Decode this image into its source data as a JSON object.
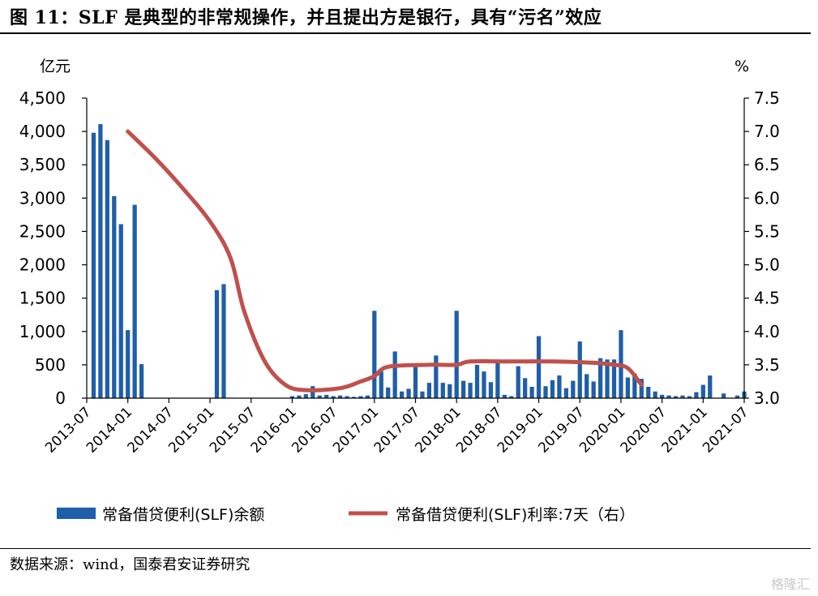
{
  "page": {
    "title": "图 11：SLF 是典型的非常规操作，并且提出方是银行，具有“污名”效应",
    "source": "数据来源：wind，国泰君安证券研究",
    "watermark": "格隆汇"
  },
  "colors": {
    "bar": "#1f5ea8",
    "line": "#c0504d",
    "axis": "#000000"
  },
  "chart_data": {
    "type": "bar+line",
    "left_unit": "亿元",
    "right_unit": "%",
    "ylim_left": [
      0,
      4500
    ],
    "ylim_right": [
      3.0,
      7.5
    ],
    "left_ticks": [
      0,
      500,
      1000,
      1500,
      2000,
      2500,
      3000,
      3500,
      4000,
      4500
    ],
    "left_tick_labels": [
      "0",
      "500",
      "1,000",
      "1,500",
      "2,000",
      "2,500",
      "3,000",
      "3,500",
      "4,000",
      "4,500"
    ],
    "right_ticks": [
      3.0,
      3.5,
      4.0,
      4.5,
      5.0,
      5.5,
      6.0,
      6.5,
      7.0,
      7.5
    ],
    "right_tick_labels": [
      "3.0",
      "3.5",
      "4.0",
      "4.5",
      "5.0",
      "5.5",
      "6.0",
      "6.5",
      "7.0",
      "7.5"
    ],
    "x_start": "2013-07",
    "x_end": "2021-07",
    "x_tick_labels": [
      "2013-07",
      "2014-01",
      "2014-07",
      "2015-01",
      "2015-07",
      "2016-01",
      "2016-07",
      "2017-01",
      "2017-07",
      "2018-01",
      "2018-07",
      "2019-01",
      "2019-07",
      "2020-01",
      "2020-07",
      "2021-01",
      "2021-07"
    ],
    "grid": false,
    "legend_position": "bottom",
    "series": [
      {
        "name": "常备借贷便利(SLF)余额",
        "type": "bar",
        "axis": "left",
        "points": [
          [
            "2013-08",
            3980
          ],
          [
            "2013-09",
            4110
          ],
          [
            "2013-10",
            3870
          ],
          [
            "2013-11",
            3030
          ],
          [
            "2013-12",
            2610
          ],
          [
            "2014-01",
            1020
          ],
          [
            "2014-02",
            2900
          ],
          [
            "2014-03",
            510
          ],
          [
            "2015-02",
            1620
          ],
          [
            "2015-03",
            1710
          ],
          [
            "2016-01",
            30
          ],
          [
            "2016-02",
            40
          ],
          [
            "2016-03",
            60
          ],
          [
            "2016-04",
            180
          ],
          [
            "2016-05",
            40
          ],
          [
            "2016-06",
            50
          ],
          [
            "2016-07",
            30
          ],
          [
            "2016-08",
            40
          ],
          [
            "2016-09",
            30
          ],
          [
            "2016-10",
            20
          ],
          [
            "2016-11",
            30
          ],
          [
            "2016-12",
            40
          ],
          [
            "2017-01",
            1310
          ],
          [
            "2017-02",
            400
          ],
          [
            "2017-03",
            160
          ],
          [
            "2017-04",
            700
          ],
          [
            "2017-05",
            100
          ],
          [
            "2017-06",
            140
          ],
          [
            "2017-07",
            480
          ],
          [
            "2017-08",
            100
          ],
          [
            "2017-09",
            230
          ],
          [
            "2017-10",
            640
          ],
          [
            "2017-11",
            230
          ],
          [
            "2017-12",
            210
          ],
          [
            "2018-01",
            1310
          ],
          [
            "2018-02",
            260
          ],
          [
            "2018-03",
            230
          ],
          [
            "2018-04",
            500
          ],
          [
            "2018-05",
            400
          ],
          [
            "2018-06",
            240
          ],
          [
            "2018-07",
            570
          ],
          [
            "2018-08",
            50
          ],
          [
            "2018-09",
            30
          ],
          [
            "2018-10",
            480
          ],
          [
            "2018-11",
            300
          ],
          [
            "2018-12",
            170
          ],
          [
            "2019-01",
            930
          ],
          [
            "2019-02",
            180
          ],
          [
            "2019-03",
            270
          ],
          [
            "2019-04",
            340
          ],
          [
            "2019-05",
            150
          ],
          [
            "2019-06",
            260
          ],
          [
            "2019-07",
            850
          ],
          [
            "2019-08",
            360
          ],
          [
            "2019-09",
            250
          ],
          [
            "2019-10",
            600
          ],
          [
            "2019-11",
            580
          ],
          [
            "2019-12",
            580
          ],
          [
            "2020-01",
            1020
          ],
          [
            "2020-02",
            310
          ],
          [
            "2020-03",
            370
          ],
          [
            "2020-04",
            290
          ],
          [
            "2020-05",
            170
          ],
          [
            "2020-06",
            100
          ],
          [
            "2020-07",
            50
          ],
          [
            "2020-08",
            40
          ],
          [
            "2020-09",
            30
          ],
          [
            "2020-10",
            40
          ],
          [
            "2020-11",
            30
          ],
          [
            "2020-12",
            90
          ],
          [
            "2021-01",
            200
          ],
          [
            "2021-02",
            340
          ],
          [
            "2021-04",
            70
          ],
          [
            "2021-06",
            40
          ],
          [
            "2021-07",
            100
          ]
        ]
      },
      {
        "name": "常备借贷便利(SLF)利率:7天（右）",
        "type": "line",
        "axis": "right",
        "points": [
          [
            "2014-01",
            7.0
          ],
          [
            "2014-05",
            6.6
          ],
          [
            "2014-09",
            6.15
          ],
          [
            "2015-01",
            5.65
          ],
          [
            "2015-04",
            5.1
          ],
          [
            "2015-06",
            4.3
          ],
          [
            "2015-09",
            3.55
          ],
          [
            "2015-12",
            3.2
          ],
          [
            "2016-03",
            3.12
          ],
          [
            "2016-08",
            3.15
          ],
          [
            "2016-11",
            3.25
          ],
          [
            "2017-01",
            3.33
          ],
          [
            "2017-03",
            3.47
          ],
          [
            "2017-09",
            3.5
          ],
          [
            "2018-01",
            3.5
          ],
          [
            "2018-03",
            3.55
          ],
          [
            "2018-09",
            3.55
          ],
          [
            "2019-03",
            3.55
          ],
          [
            "2019-09",
            3.53
          ],
          [
            "2019-12",
            3.5
          ],
          [
            "2020-02",
            3.45
          ],
          [
            "2020-04",
            3.2
          ]
        ]
      }
    ]
  }
}
